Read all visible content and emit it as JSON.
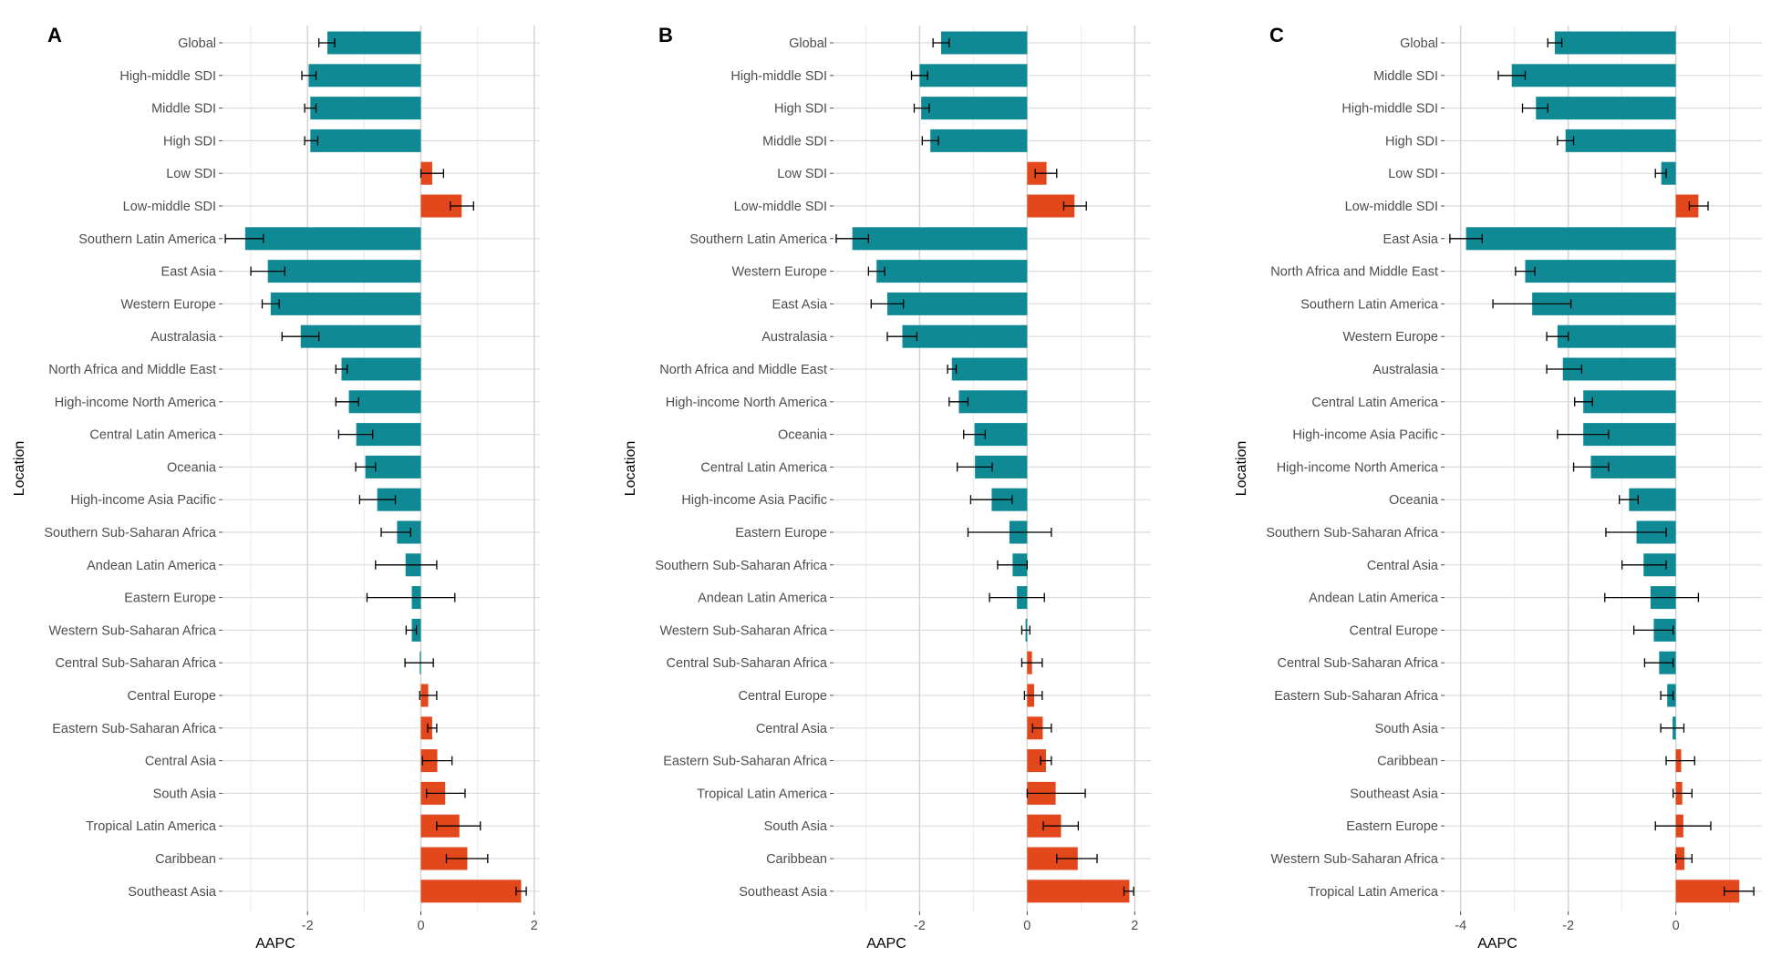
{
  "chart_data": [
    {
      "type": "bar",
      "panel_label": "A",
      "xlabel": "AAPC",
      "ylabel": "Location",
      "xlim": [
        -3.5,
        2.1
      ],
      "xticks": [
        -2,
        0,
        2
      ],
      "xtick_labels": [
        "-2",
        "0",
        "2"
      ],
      "grid": true,
      "orientation": "horizontal",
      "categories": [
        "Global",
        "High-middle SDI",
        "Middle SDI",
        "High SDI",
        "Low SDI",
        "Low-middle SDI",
        "Southern Latin America",
        "East Asia",
        "Western Europe",
        "Australasia",
        "North Africa and Middle East",
        "High-income North America",
        "Central Latin America",
        "Oceania",
        "High-income Asia Pacific",
        "Southern Sub-Saharan Africa",
        "Andean Latin America",
        "Eastern Europe",
        "Western Sub-Saharan Africa",
        "Central Sub-Saharan Africa",
        "Central Europe",
        "Eastern Sub-Saharan Africa",
        "Central Asia",
        "South Asia",
        "Tropical Latin America",
        "Caribbean",
        "Southeast Asia"
      ],
      "values": [
        -1.65,
        -1.98,
        -1.95,
        -1.95,
        0.2,
        0.72,
        -3.1,
        -2.7,
        -2.65,
        -2.12,
        -1.4,
        -1.27,
        -1.14,
        -0.98,
        -0.77,
        -0.42,
        -0.27,
        -0.16,
        -0.16,
        -0.02,
        0.13,
        0.2,
        0.29,
        0.43,
        0.68,
        0.82,
        1.77
      ],
      "ci_low": [
        -1.8,
        -2.1,
        -2.05,
        -2.05,
        0.0,
        0.52,
        -3.45,
        -3.0,
        -2.8,
        -2.45,
        -1.5,
        -1.5,
        -1.45,
        -1.15,
        -1.08,
        -0.7,
        -0.8,
        -0.95,
        -0.26,
        -0.28,
        -0.02,
        0.12,
        0.03,
        0.1,
        0.28,
        0.45,
        1.68
      ],
      "ci_high": [
        -1.52,
        -1.85,
        -1.85,
        -1.82,
        0.4,
        0.93,
        -2.78,
        -2.4,
        -2.5,
        -1.8,
        -1.3,
        -1.1,
        -0.85,
        -0.8,
        -0.45,
        -0.18,
        0.28,
        0.6,
        -0.08,
        0.22,
        0.28,
        0.28,
        0.55,
        0.78,
        1.05,
        1.18,
        1.86
      ],
      "colors": {
        "negative": "#0f8a95",
        "positive": "#e2481c"
      }
    },
    {
      "type": "bar",
      "panel_label": "B",
      "xlabel": "AAPC",
      "ylabel": "Location",
      "xlim": [
        -3.6,
        2.3
      ],
      "xticks": [
        -2,
        0,
        2
      ],
      "xtick_labels": [
        "-2",
        "0",
        "2"
      ],
      "grid": true,
      "orientation": "horizontal",
      "categories": [
        "Global",
        "High-middle SDI",
        "High SDI",
        "Middle SDI",
        "Low SDI",
        "Low-middle SDI",
        "Southern Latin America",
        "Western Europe",
        "East Asia",
        "Australasia",
        "North Africa and Middle East",
        "High-income North America",
        "Oceania",
        "Central Latin America",
        "High-income Asia Pacific",
        "Eastern Europe",
        "Southern Sub-Saharan Africa",
        "Andean Latin America",
        "Western Sub-Saharan Africa",
        "Central Sub-Saharan Africa",
        "Central Europe",
        "Central Asia",
        "Eastern Sub-Saharan Africa",
        "Tropical Latin America",
        "South Asia",
        "Caribbean",
        "Southeast Asia"
      ],
      "values": [
        -1.6,
        -2.0,
        -1.97,
        -1.8,
        0.36,
        0.88,
        -3.25,
        -2.8,
        -2.6,
        -2.32,
        -1.4,
        -1.27,
        -0.98,
        -0.97,
        -0.66,
        -0.33,
        -0.27,
        -0.19,
        -0.03,
        0.09,
        0.13,
        0.29,
        0.35,
        0.53,
        0.63,
        0.94,
        1.9
      ],
      "ci_low": [
        -1.75,
        -2.15,
        -2.1,
        -1.95,
        0.15,
        0.68,
        -3.55,
        -2.95,
        -2.9,
        -2.6,
        -1.48,
        -1.45,
        -1.18,
        -1.3,
        -1.05,
        -1.1,
        -0.55,
        -0.7,
        -0.1,
        -0.1,
        -0.05,
        0.1,
        0.25,
        0.0,
        0.3,
        0.55,
        1.8
      ],
      "ci_high": [
        -1.45,
        -1.85,
        -1.82,
        -1.65,
        0.55,
        1.1,
        -2.95,
        -2.65,
        -2.3,
        -2.05,
        -1.32,
        -1.1,
        -0.78,
        -0.65,
        -0.28,
        0.45,
        0.0,
        0.32,
        0.05,
        0.28,
        0.28,
        0.45,
        0.45,
        1.08,
        0.95,
        1.3,
        1.98
      ],
      "colors": {
        "negative": "#0f8a95",
        "positive": "#e2481c"
      }
    },
    {
      "type": "bar",
      "panel_label": "C",
      "xlabel": "AAPC",
      "ylabel": "Location",
      "xlim": [
        -4.3,
        1.6
      ],
      "xticks": [
        -4,
        -2,
        0
      ],
      "xtick_labels": [
        "-4",
        "-2",
        "0"
      ],
      "grid": true,
      "orientation": "horizontal",
      "categories": [
        "Global",
        "Middle SDI",
        "High-middle SDI",
        "High SDI",
        "Low SDI",
        "Low-middle SDI",
        "East Asia",
        "North Africa and Middle East",
        "Southern Latin America",
        "Western Europe",
        "Australasia",
        "Central Latin America",
        "High-income Asia Pacific",
        "High-income North America",
        "Oceania",
        "Southern Sub-Saharan Africa",
        "Central Asia",
        "Andean Latin America",
        "Central Europe",
        "Central Sub-Saharan Africa",
        "Eastern Sub-Saharan Africa",
        "South Asia",
        "Caribbean",
        "Southeast Asia",
        "Eastern Europe",
        "Western Sub-Saharan Africa",
        "Tropical Latin America"
      ],
      "values": [
        -2.25,
        -3.05,
        -2.6,
        -2.05,
        -0.27,
        0.42,
        -3.9,
        -2.8,
        -2.67,
        -2.2,
        -2.1,
        -1.72,
        -1.72,
        -1.58,
        -0.87,
        -0.73,
        -0.6,
        -0.47,
        -0.41,
        -0.31,
        -0.16,
        -0.06,
        0.1,
        0.12,
        0.14,
        0.16,
        1.18
      ],
      "ci_low": [
        -2.38,
        -3.3,
        -2.85,
        -2.2,
        -0.38,
        0.25,
        -4.2,
        -2.98,
        -3.4,
        -2.4,
        -2.4,
        -1.88,
        -2.2,
        -1.9,
        -1.05,
        -1.3,
        -1.0,
        -1.32,
        -0.78,
        -0.58,
        -0.28,
        -0.28,
        -0.18,
        -0.05,
        -0.38,
        0.0,
        0.9
      ],
      "ci_high": [
        -2.12,
        -2.8,
        -2.38,
        -1.9,
        -0.18,
        0.6,
        -3.6,
        -2.62,
        -1.95,
        -2.0,
        -1.75,
        -1.55,
        -1.25,
        -1.25,
        -0.7,
        -0.18,
        -0.18,
        0.42,
        -0.05,
        -0.05,
        -0.05,
        0.15,
        0.35,
        0.3,
        0.65,
        0.3,
        1.45
      ],
      "colors": {
        "negative": "#0f8a95",
        "positive": "#e2481c"
      }
    }
  ]
}
